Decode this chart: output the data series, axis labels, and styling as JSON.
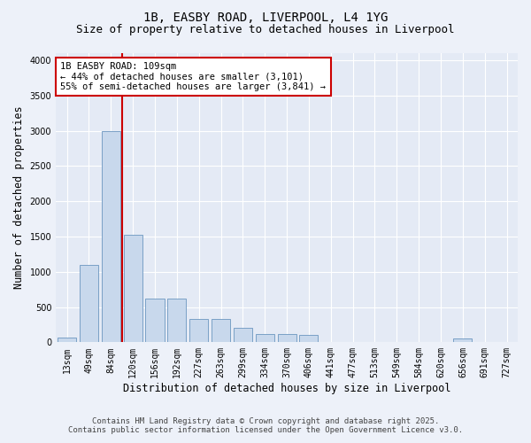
{
  "title": "1B, EASBY ROAD, LIVERPOOL, L4 1YG",
  "subtitle": "Size of property relative to detached houses in Liverpool",
  "xlabel": "Distribution of detached houses by size in Liverpool",
  "ylabel": "Number of detached properties",
  "categories": [
    "13sqm",
    "49sqm",
    "84sqm",
    "120sqm",
    "156sqm",
    "192sqm",
    "227sqm",
    "263sqm",
    "299sqm",
    "334sqm",
    "370sqm",
    "406sqm",
    "441sqm",
    "477sqm",
    "513sqm",
    "549sqm",
    "584sqm",
    "620sqm",
    "656sqm",
    "691sqm",
    "727sqm"
  ],
  "values": [
    70,
    1100,
    3000,
    1520,
    620,
    620,
    330,
    330,
    200,
    120,
    120,
    110,
    0,
    0,
    0,
    0,
    0,
    0,
    50,
    0,
    0
  ],
  "bar_color": "#c8d8ec",
  "bar_edge_color": "#6b96c0",
  "vline_x": 2.5,
  "vline_color": "#cc0000",
  "annotation_text": "1B EASBY ROAD: 109sqm\n← 44% of detached houses are smaller (3,101)\n55% of semi-detached houses are larger (3,841) →",
  "annotation_box_facecolor": "#ffffff",
  "annotation_box_edgecolor": "#cc0000",
  "ylim": [
    0,
    4100
  ],
  "yticks": [
    0,
    500,
    1000,
    1500,
    2000,
    2500,
    3000,
    3500,
    4000
  ],
  "background_color": "#edf1f9",
  "plot_background": "#e4eaf5",
  "grid_color": "#ffffff",
  "footer_line1": "Contains HM Land Registry data © Crown copyright and database right 2025.",
  "footer_line2": "Contains public sector information licensed under the Open Government Licence v3.0.",
  "title_fontsize": 10,
  "subtitle_fontsize": 9,
  "axis_label_fontsize": 8.5,
  "tick_fontsize": 7,
  "annot_fontsize": 7.5,
  "footer_fontsize": 6.5
}
